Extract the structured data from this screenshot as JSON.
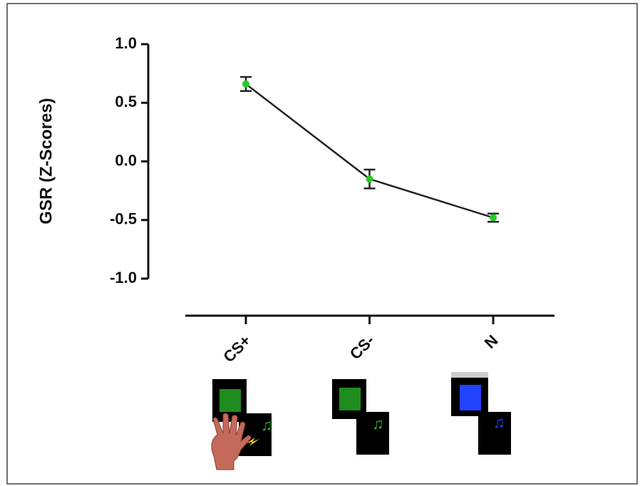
{
  "chart_data": {
    "type": "line",
    "y_label": "GSR (Z-Scores)",
    "categories": [
      "CS+",
      "CS-",
      "N"
    ],
    "series": [
      {
        "color": "#22cc22",
        "values": [
          0.66,
          -0.15,
          -0.48
        ],
        "errors": [
          0.06,
          0.08,
          0.035
        ]
      }
    ],
    "ylim": [
      -1,
      1
    ],
    "yticks": [
      {
        "value": -1,
        "label": "-1.0"
      },
      -0.5,
      {
        "value": 0,
        "label": "0.0"
      },
      0.5,
      {
        "value": 1,
        "label": "1.0"
      }
    ]
  }
}
